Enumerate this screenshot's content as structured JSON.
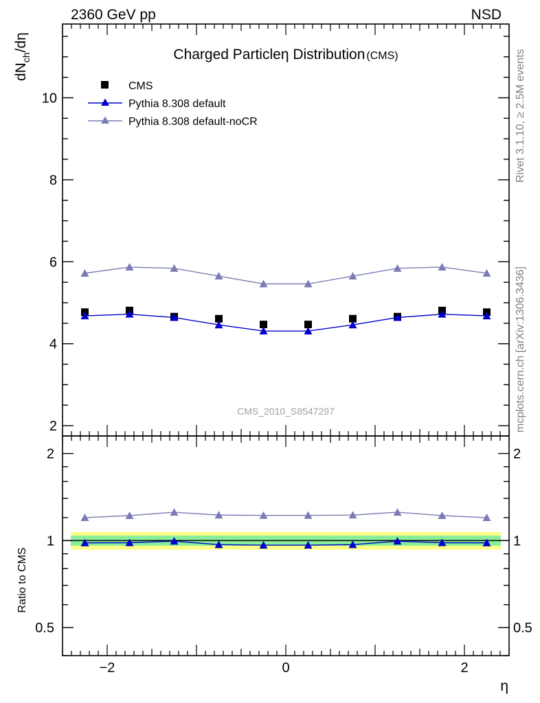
{
  "header": {
    "left": "2360 GeV pp",
    "right": "NSD"
  },
  "side_labels": {
    "rivet": "Rivet 3.1.10, ≥ 2.5M events",
    "mcplots": "mcplots.cern.ch [arXiv:1306.3436]"
  },
  "watermark": "CMS_2010_S8547297",
  "colors": {
    "data": "#000000",
    "pythia_default": "#0000cc",
    "pythia_nocr": "#7c7cb4",
    "band_inner": "#88ee99",
    "band_outer": "#ffff88"
  },
  "chart_data": [
    {
      "type": "line",
      "title": "Charged Particleη Distribution",
      "title_suffix": "(CMS)",
      "ylabel": "dNch/dη",
      "ylabel_parts": {
        "main": "dN",
        "sub": "ch",
        "tail": "/dη"
      },
      "xlim": [
        -2.5,
        2.5
      ],
      "ylim": [
        1.75,
        11.8
      ],
      "y_ticks": [
        2,
        4,
        6,
        8,
        10
      ],
      "y_tick_labels": [
        "2",
        "4",
        "6",
        "8",
        "10"
      ],
      "x": [
        -2.25,
        -1.75,
        -1.25,
        -0.75,
        -0.25,
        0.25,
        0.75,
        1.25,
        1.75,
        2.25
      ],
      "series": [
        {
          "name": "CMS",
          "marker": "square",
          "values": [
            4.77,
            4.81,
            4.66,
            4.61,
            4.47,
            4.47,
            4.61,
            4.66,
            4.81,
            4.77
          ]
        },
        {
          "name": "Pythia 8.308 default",
          "marker": "triangle",
          "values": [
            4.68,
            4.72,
            4.64,
            4.46,
            4.31,
            4.31,
            4.46,
            4.64,
            4.72,
            4.68
          ]
        },
        {
          "name": "Pythia 8.308 default-noCR",
          "marker": "triangle",
          "values": [
            5.72,
            5.87,
            5.84,
            5.65,
            5.46,
            5.46,
            5.65,
            5.84,
            5.87,
            5.72
          ]
        }
      ],
      "legend": [
        "CMS",
        "Pythia 8.308 default",
        "Pythia 8.308 default-noCR"
      ],
      "legend_position": "top-left"
    },
    {
      "type": "line",
      "ylabel": "Ratio to CMS",
      "xlabel": "η",
      "xlim": [
        -2.5,
        2.5
      ],
      "ylim": [
        0.4,
        2.3
      ],
      "y_scale": "log",
      "y_ticks": [
        0.5,
        1,
        2
      ],
      "y_tick_labels": [
        "0.5",
        "1",
        "2"
      ],
      "x_ticks": [
        -2,
        0,
        2
      ],
      "x_tick_labels": [
        "−2",
        "0",
        "2"
      ],
      "x": [
        -2.25,
        -1.75,
        -1.25,
        -0.75,
        -0.25,
        0.25,
        0.75,
        1.25,
        1.75,
        2.25
      ],
      "band_inner": [
        0.96,
        1.04
      ],
      "band_outer": [
        0.93,
        1.07
      ],
      "series": [
        {
          "name": "Pythia 8.308 default",
          "values": [
            0.982,
            0.983,
            0.995,
            0.968,
            0.964,
            0.964,
            0.968,
            0.995,
            0.983,
            0.982
          ]
        },
        {
          "name": "Pythia 8.308 default-noCR",
          "values": [
            1.2,
            1.22,
            1.253,
            1.225,
            1.222,
            1.222,
            1.225,
            1.253,
            1.22,
            1.2
          ]
        }
      ]
    }
  ]
}
